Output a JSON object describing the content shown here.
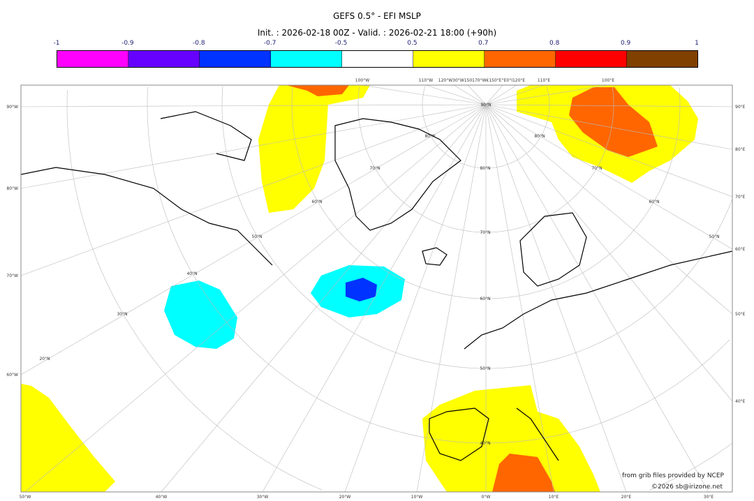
{
  "title": "GEFS 0.5° - EFI MSLP",
  "subtitle": "Init. : 2026-02-18 00Z - Valid. : 2026-02-21 18:00 (+90h)",
  "colorbar": {
    "ticks": [
      "-1",
      "-0.9",
      "-0.8",
      "-0.7",
      "-0.5",
      "0.5",
      "0.7",
      "0.8",
      "0.9",
      "1"
    ],
    "colors": [
      "#ff00ff",
      "#6600ff",
      "#0033ff",
      "#00ffff",
      "#ffffff",
      "#ffff00",
      "#ff6600",
      "#ff0000",
      "#804000"
    ]
  },
  "axes": {
    "bottom": [
      "50°W",
      "40°W",
      "30°W",
      "20°W",
      "10°W",
      "0°W",
      "10°E",
      "20°E",
      "30°E"
    ],
    "left": [
      "90°W",
      "80°W",
      "70°W",
      "60°W"
    ],
    "right": [
      "90°E",
      "80°E",
      "70°E",
      "60°E",
      "50°E",
      "40°E"
    ],
    "top": [
      "100°W",
      "110°W",
      "120°W30°W150170°W€150°E°E0°I120°E",
      "110°E",
      "100°E"
    ],
    "inner": [
      "50°N",
      "40°N",
      "30°N",
      "20°N",
      "60°N",
      "70°N",
      "80°N",
      "90°N",
      "80°N",
      "70°N",
      "60°N",
      "50°N",
      "40°N",
      "80°N",
      "70°N",
      "60°N",
      "50°N"
    ]
  },
  "credits": {
    "source": "from grib files provided by NCEP",
    "copyright": "©2026 sb@irizone.net"
  }
}
